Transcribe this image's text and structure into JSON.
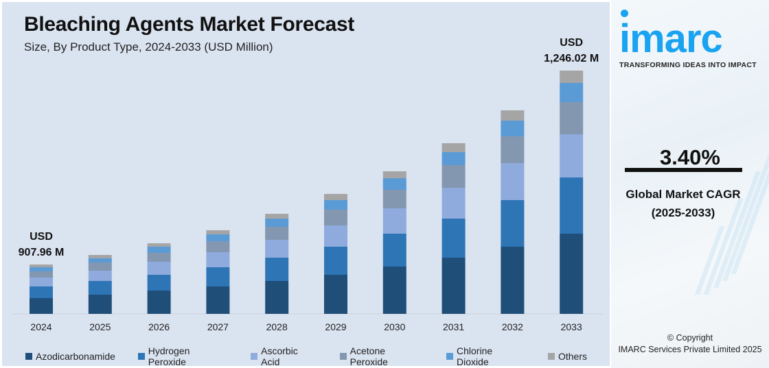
{
  "chart_data": {
    "type": "bar",
    "stacked": true,
    "title": "Bleaching Agents Market Forecast",
    "subtitle": "Size, By Product Type, 2024-2033 (USD Million)",
    "categories": [
      "2024",
      "2025",
      "2026",
      "2027",
      "2028",
      "2029",
      "2030",
      "2031",
      "2032",
      "2033"
    ],
    "series": [
      {
        "name": "Azodicarbonamide",
        "color": "#1f4e79",
        "values": [
          23,
          28,
          34,
          40,
          48,
          57,
          69,
          82,
          98,
          117
        ]
      },
      {
        "name": "Hydrogen Peroxide",
        "color": "#2e75b6",
        "values": [
          17,
          20,
          23,
          28,
          34,
          41,
          48,
          57,
          68,
          82
        ]
      },
      {
        "name": "Ascorbic Acid",
        "color": "#8faadc",
        "values": [
          13,
          15,
          19,
          22,
          26,
          31,
          37,
          45,
          54,
          63
        ]
      },
      {
        "name": "Acetone Peroxide",
        "color": "#8497b0",
        "values": [
          9,
          12,
          13,
          16,
          19,
          23,
          27,
          33,
          39,
          47
        ]
      },
      {
        "name": "Chlorine Dioxide",
        "color": "#5b9bd5",
        "values": [
          6,
          6,
          9,
          10,
          12,
          14,
          17,
          19,
          23,
          28
        ]
      },
      {
        "name": "Others",
        "color": "#a5a5a5",
        "values": [
          4,
          5,
          5,
          6,
          7,
          9,
          10,
          13,
          15,
          18
        ]
      }
    ],
    "values_note": "relative segment sizes (no y-axis printed)",
    "ylim": [
      0,
      380
    ],
    "grid": false,
    "legend": "bottom",
    "annotations": [
      {
        "category": "2024",
        "line1": "USD",
        "line2": "907.96 M"
      },
      {
        "category": "2033",
        "line1": "USD",
        "line2": "1,246.02 M"
      }
    ]
  },
  "side": {
    "logo": "imarc",
    "tagline": "TRANSFORMING IDEAS INTO IMPACT",
    "cagr_value": "3.40%",
    "cagr_label": "Global Market CAGR",
    "cagr_period": "(2025-2033)",
    "copyright": "© Copyright",
    "company": "IMARC Services Private Limited 2025"
  }
}
